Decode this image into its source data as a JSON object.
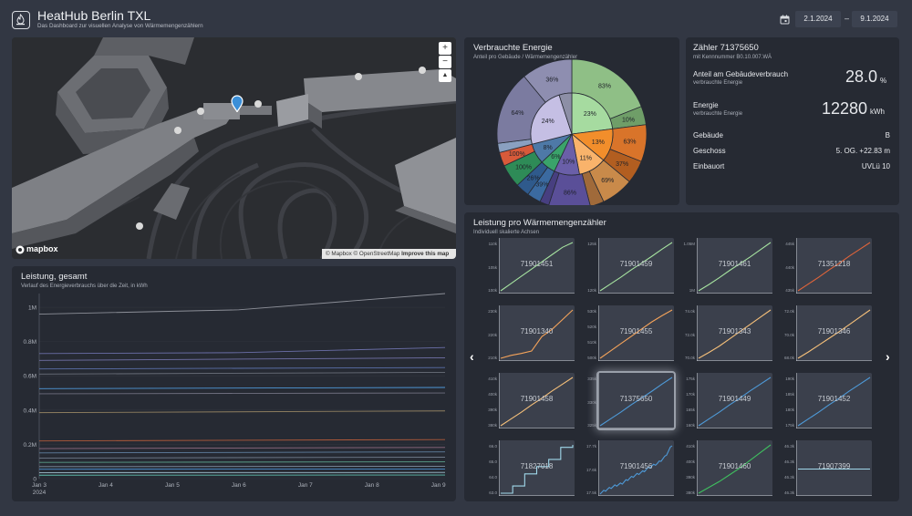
{
  "header": {
    "title": "HeatHub Berlin TXL",
    "subtitle": "Das Dashboard zur visuellen Analyse von Wärmemengenzählern",
    "date_from": "2.1.2024",
    "date_sep": "–",
    "date_to": "9.1.2024",
    "calendar_icon": "calendar-icon",
    "logo_icon": "flame-shield-icon"
  },
  "map": {
    "zoom_in": "+",
    "zoom_out": "−",
    "compass": "▲",
    "logo": "mapbox",
    "attribution": "© Mapbox © OpenStreetMap",
    "improve": "Improve this map"
  },
  "energy": {
    "title": "Verbrauchte Energie",
    "subtitle": "Anteil pro Gebäude / Wärmemengenzähler"
  },
  "meter": {
    "title": "Zähler 71375650",
    "subtitle": "mit Kennnummer B0.10.007.WÄ",
    "share_label": "Anteil am Gebäudeverbrauch",
    "share_sub": "verbrauchte Energie",
    "share_value": "28.0",
    "share_unit": "%",
    "energy_label": "Energie",
    "energy_sub": "verbrauchte Energie",
    "energy_value": "12280",
    "energy_unit": "kWh",
    "building_label": "Gebäude",
    "building_value": "B",
    "floor_label": "Geschoss",
    "floor_value": "5. OG. +22.83 m",
    "location_label": "Einbauort",
    "location_value": "UVLü 10"
  },
  "total": {
    "title": "Leistung, gesamt",
    "subtitle": "Verlauf des Energieverbrauchs über die Zeit, in kWh"
  },
  "grid": {
    "title": "Leistung pro Wärmemengenzähler",
    "subtitle": "Individuell skalierte Achsen",
    "prev": "‹",
    "next": "›"
  },
  "chart_data": [
    {
      "type": "pie",
      "title": "Verbrauchte Energie",
      "inner": [
        {
          "label": "23%",
          "value": 23,
          "color": "#a6dba0"
        },
        {
          "label": "13%",
          "value": 13,
          "color": "#f28e2b"
        },
        {
          "label": "11%",
          "value": 11,
          "color": "#f9b36b"
        },
        {
          "label": "10%",
          "value": 10,
          "color": "#6a5fa8"
        },
        {
          "label": "6%",
          "value": 6,
          "color": "#3aa36a"
        },
        {
          "label": "8%",
          "value": 8,
          "color": "#4e79a7"
        },
        {
          "label": "24%",
          "value": 24,
          "color": "#c5bfe4"
        },
        {
          "label": "",
          "value": 5,
          "color": "#8d8fa6"
        }
      ],
      "outer": [
        {
          "label": "83%",
          "value": 19,
          "color": "#8fbf86"
        },
        {
          "label": "10%",
          "value": 4,
          "color": "#6f9e68"
        },
        {
          "label": "63%",
          "value": 8,
          "color": "#d9742a"
        },
        {
          "label": "37%",
          "value": 5,
          "color": "#b25e20"
        },
        {
          "label": "69%",
          "value": 7,
          "color": "#c98a4a"
        },
        {
          "label": "",
          "value": 3,
          "color": "#a06a3a"
        },
        {
          "label": "86%",
          "value": 9,
          "color": "#5a4f98"
        },
        {
          "label": "",
          "value": 2,
          "color": "#473f80"
        },
        {
          "label": "39%",
          "value": 3,
          "color": "#3b6aa0"
        },
        {
          "label": "26%",
          "value": 3,
          "color": "#2f5a8c"
        },
        {
          "label": "100%",
          "value": 5,
          "color": "#2e8b57"
        },
        {
          "label": "100%",
          "value": 3,
          "color": "#d85a3a"
        },
        {
          "label": "",
          "value": 2,
          "color": "#8aa0c0"
        },
        {
          "label": "64%",
          "value": 16,
          "color": "#7b7ba0"
        },
        {
          "label": "36%",
          "value": 11,
          "color": "#8e8eb0"
        }
      ]
    },
    {
      "type": "line",
      "title": "Leistung, gesamt",
      "ytick_labels": [
        "0",
        "0.2M",
        "0.4M",
        "0.6M",
        "0.8M",
        "1M"
      ],
      "yticks": [
        0,
        200000,
        400000,
        600000,
        800000,
        1000000
      ],
      "ylim": [
        0,
        1080000
      ],
      "xtick_labels": [
        "Jan 3",
        "Jan 4",
        "Jan 5",
        "Jan 6",
        "Jan 7",
        "Jan 8",
        "Jan 9"
      ],
      "xtick_sub": "2024",
      "xlim": [
        0,
        6.1
      ],
      "series": [
        {
          "color": "#8c8f98",
          "values": [
            [
              0,
              960000
            ],
            [
              3,
              985000
            ],
            [
              6.1,
              1080000
            ]
          ]
        },
        {
          "color": "#6b6fa8",
          "values": [
            [
              0,
              730000
            ],
            [
              3,
              735000
            ],
            [
              6.1,
              765000
            ]
          ]
        },
        {
          "color": "#7272a8",
          "values": [
            [
              0,
              690000
            ],
            [
              6.1,
              705000
            ]
          ]
        },
        {
          "color": "#5a6fa8",
          "values": [
            [
              0,
              640000
            ],
            [
              6.1,
              648000
            ]
          ]
        },
        {
          "color": "#6a6f7a",
          "values": [
            [
              0,
              610000
            ],
            [
              6.1,
              620000
            ]
          ]
        },
        {
          "color": "#4f98d8",
          "values": [
            [
              0,
              525000
            ],
            [
              6.1,
              532000
            ]
          ]
        },
        {
          "color": "#6f6f7f",
          "values": [
            [
              0,
              495000
            ],
            [
              6.1,
              500000
            ]
          ]
        },
        {
          "color": "#8f7f60",
          "values": [
            [
              0,
              385000
            ],
            [
              6.1,
              395000
            ]
          ]
        },
        {
          "color": "#b05a3a",
          "values": [
            [
              0,
              220000
            ],
            [
              6.1,
              228000
            ]
          ]
        },
        {
          "color": "#8f6a80",
          "values": [
            [
              0,
              175000
            ],
            [
              6.1,
              182000
            ]
          ]
        },
        {
          "color": "#5f7f9f",
          "values": [
            [
              0,
              150000
            ],
            [
              6.1,
              156000
            ]
          ]
        },
        {
          "color": "#6f7a8a",
          "values": [
            [
              0,
              120000
            ],
            [
              6.1,
              125000
            ]
          ]
        },
        {
          "color": "#5a9f8a",
          "values": [
            [
              0,
              95000
            ],
            [
              6.1,
              98000
            ]
          ]
        },
        {
          "color": "#7f8fa0",
          "values": [
            [
              0,
              70000
            ],
            [
              6.1,
              72000
            ]
          ]
        },
        {
          "color": "#4a8fcf",
          "values": [
            [
              0,
              55000
            ],
            [
              6.1,
              56000
            ]
          ]
        },
        {
          "color": "#9fbfcf",
          "values": [
            [
              0,
              35000
            ],
            [
              6.1,
              36000
            ]
          ]
        },
        {
          "color": "#5fbfaf",
          "values": [
            [
              0,
              20000
            ],
            [
              6.1,
              21000
            ]
          ]
        }
      ]
    },
    {
      "type": "line",
      "title": "Leistung pro Wärmemengenzähler",
      "charts": [
        {
          "id": "71901451",
          "color": "#a6e3a0",
          "ticks": [
            "110k",
            "105k",
            "100k"
          ],
          "values": [
            0,
            0.15,
            0.3,
            0.45,
            0.6,
            0.75,
            0.9,
            1
          ]
        },
        {
          "id": "71901459",
          "color": "#a6e3a0",
          "ticks": [
            "125k",
            "120k"
          ],
          "values": [
            0,
            0.14,
            0.28,
            0.43,
            0.57,
            0.71,
            0.86,
            1
          ]
        },
        {
          "id": "71901461",
          "color": "#a6e3a0",
          "ticks": [
            "1.05M",
            "1M"
          ],
          "values": [
            0,
            0.13,
            0.27,
            0.42,
            0.56,
            0.7,
            0.85,
            1
          ]
        },
        {
          "id": "71351218",
          "color": "#e0643a",
          "ticks": [
            "445k",
            "440k",
            "435k"
          ],
          "values": [
            0,
            0.14,
            0.28,
            0.43,
            0.57,
            0.72,
            0.86,
            1
          ]
        },
        {
          "id": "71901340",
          "color": "#f4a35a",
          "ticks": [
            "230k",
            "220k",
            "210k"
          ],
          "values": [
            0,
            0.06,
            0.1,
            0.15,
            0.45,
            0.6,
            0.8,
            1
          ]
        },
        {
          "id": "71901455",
          "color": "#f4a35a",
          "ticks": [
            "530k",
            "520k",
            "510k",
            "500k"
          ],
          "values": [
            0,
            0.15,
            0.3,
            0.45,
            0.6,
            0.75,
            0.88,
            1
          ]
        },
        {
          "id": "71901343",
          "color": "#f6c07a",
          "ticks": [
            "74.0k",
            "72.0k",
            "70.0k"
          ],
          "values": [
            0,
            0.12,
            0.25,
            0.4,
            0.55,
            0.7,
            0.85,
            1
          ]
        },
        {
          "id": "71901346",
          "color": "#f6c07a",
          "ticks": [
            "72.0k",
            "70.0k",
            "68.0k"
          ],
          "values": [
            0,
            0.13,
            0.27,
            0.41,
            0.55,
            0.7,
            0.85,
            1
          ]
        },
        {
          "id": "71901458",
          "color": "#f6c07a",
          "ticks": [
            "410k",
            "400k",
            "390k",
            "380k"
          ],
          "values": [
            0,
            0.14,
            0.28,
            0.43,
            0.57,
            0.72,
            0.86,
            1
          ]
        },
        {
          "id": "71375650",
          "color": "#4e9ad8",
          "ticks": [
            "335k",
            "330k",
            "325k"
          ],
          "values": [
            0,
            0.14,
            0.28,
            0.43,
            0.57,
            0.71,
            0.86,
            1
          ]
        },
        {
          "id": "71901449",
          "color": "#4e9ad8",
          "ticks": [
            "175k",
            "170k",
            "165k",
            "160k"
          ],
          "values": [
            0,
            0.14,
            0.28,
            0.43,
            0.57,
            0.72,
            0.86,
            1
          ]
        },
        {
          "id": "71901452",
          "color": "#4e9ad8",
          "ticks": [
            "190k",
            "185k",
            "180k",
            "175k"
          ],
          "values": [
            0,
            0.14,
            0.28,
            0.43,
            0.57,
            0.72,
            0.86,
            1
          ]
        },
        {
          "id": "71827018",
          "color": "#a0d8ea",
          "ticks": [
            "66.0",
            "65.0",
            "64.0",
            "63.0"
          ],
          "step": true,
          "values": [
            0,
            0,
            0.15,
            0.15,
            0.4,
            0.4,
            0.55,
            0.55,
            0.7,
            0.7,
            0.95,
            0.95,
            1
          ]
        },
        {
          "id": "71901456",
          "color": "#4e9ad8",
          "ticks": [
            "17.7k",
            "17.6k",
            "17.5k"
          ],
          "noisy": true,
          "values": [
            0,
            0.08,
            0.15,
            0.2,
            0.3,
            0.38,
            0.45,
            0.55,
            0.62,
            0.75,
            1
          ]
        },
        {
          "id": "71901460",
          "color": "#3fbf5f",
          "ticks": [
            "410k",
            "400k",
            "390k",
            "380k"
          ],
          "values": [
            0,
            0.12,
            0.24,
            0.38,
            0.52,
            0.68,
            0.84,
            1
          ]
        },
        {
          "id": "71907399",
          "color": "#a0d8ea",
          "ticks": [
            "46.3k",
            "46.3k",
            "46.3k",
            "46.3k"
          ],
          "values": [
            0.5,
            0.5,
            0.5,
            0.5,
            0.5,
            0.5,
            0.5,
            0.5
          ]
        }
      ]
    }
  ]
}
